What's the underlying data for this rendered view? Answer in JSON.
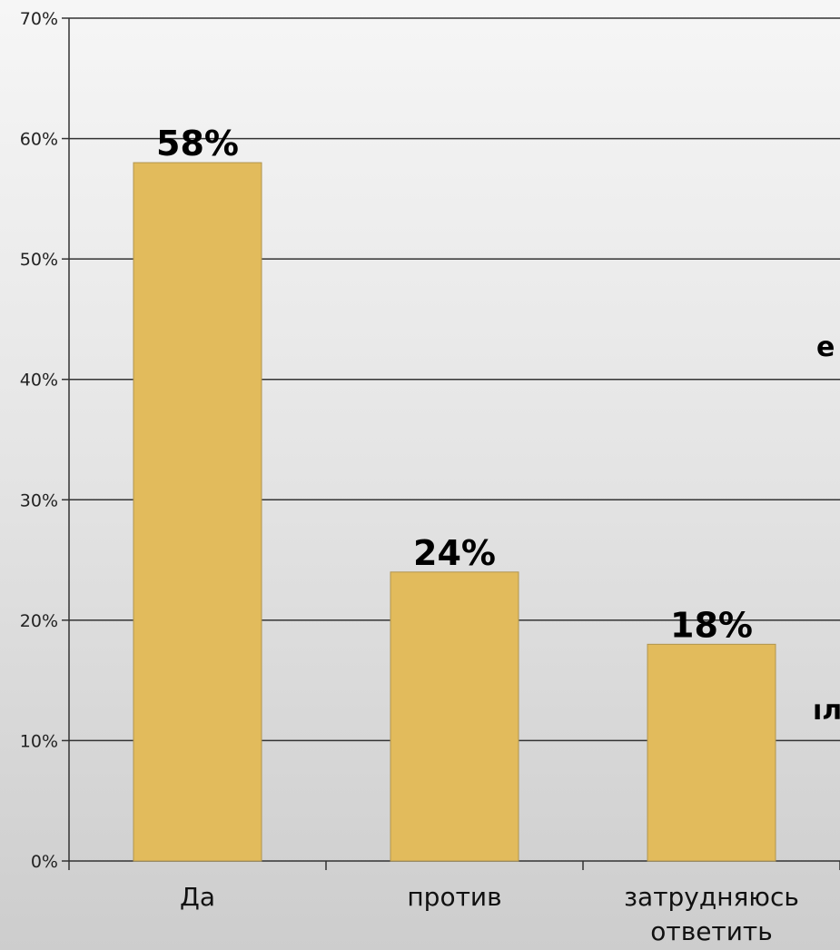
{
  "chart_data": {
    "type": "bar",
    "categories": [
      "Да",
      "против",
      "затрудняюсь ответить"
    ],
    "category_lines": [
      [
        "Да"
      ],
      [
        "против"
      ],
      [
        "затрудняюсь",
        "ответить"
      ]
    ],
    "values": [
      58,
      24,
      18
    ],
    "data_labels": [
      "58%",
      "24%",
      "18%"
    ],
    "title": "",
    "xlabel": "",
    "ylabel": "",
    "ylim": [
      0,
      70
    ],
    "yticks": [
      0,
      10,
      20,
      30,
      40,
      50,
      60,
      70
    ],
    "ytick_labels": [
      "0%",
      "10%",
      "20%",
      "30%",
      "40%",
      "50%",
      "60%",
      "70%"
    ],
    "grid": true,
    "legend": "none",
    "colors": {
      "bar_fill": "#e2bb5c",
      "bar_stroke": "#b09550",
      "grid": "#333333",
      "axis": "#333333"
    }
  },
  "fragments": {
    "right_edge_upper": "е",
    "right_edge_lower": "ıл"
  }
}
